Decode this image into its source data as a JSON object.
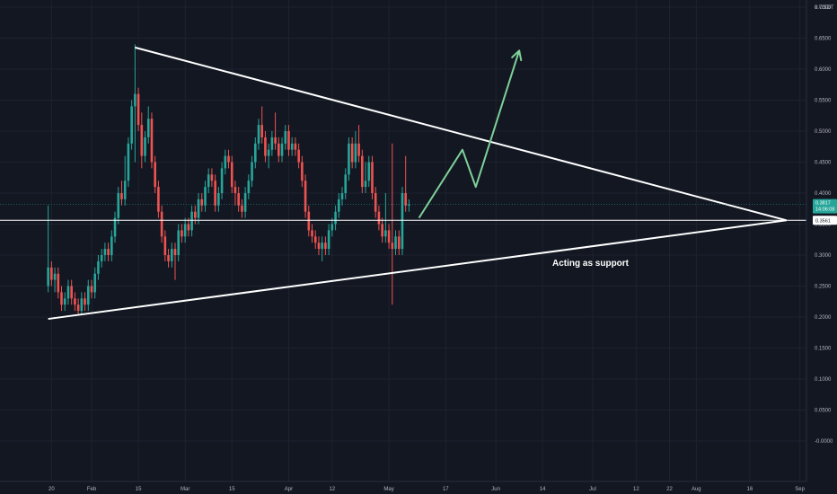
{
  "chart_data": {
    "type": "candlestick",
    "unit": "USDT",
    "y_ticks": [
      "0.7000",
      "0.6500",
      "0.6000",
      "0.5500",
      "0.5000",
      "0.4500",
      "0.4000",
      "0.3500",
      "0.3000",
      "0.2500",
      "0.2000",
      "0.1500",
      "0.1000",
      "0.0500",
      "-0.0000"
    ],
    "y_tick_values": [
      0.7,
      0.65,
      0.6,
      0.55,
      0.5,
      0.45,
      0.4,
      0.35,
      0.3,
      0.25,
      0.2,
      0.15,
      0.1,
      0.05,
      0.0
    ],
    "x_ticks": [
      "20",
      "Feb",
      "15",
      "Mar",
      "15",
      "Apr",
      "12",
      "May",
      "17",
      "Jun",
      "14",
      "Jul",
      "12",
      "22",
      "Aug",
      "16",
      "Sep"
    ],
    "x_tick_days": [
      -12,
      0,
      14,
      28,
      42,
      59,
      72,
      89,
      106,
      121,
      135,
      150,
      163,
      173,
      181,
      197,
      212
    ],
    "ylim": [
      -0.01,
      0.71
    ],
    "grid": true,
    "price_tag": {
      "value": "0.3817",
      "countdown": "14:06:08",
      "color": "#26a69a"
    },
    "support_tag": {
      "value": "0.3561"
    },
    "support_level": 0.3561,
    "annotation": "Acting as support",
    "colors": {
      "up": "#26a69a",
      "down": "#ef5350",
      "lines": "#ffffff",
      "projection": "#7fd19a"
    },
    "candles": [
      [
        -13,
        0.25,
        0.28,
        0.38,
        0.24
      ],
      [
        -12,
        0.28,
        0.26,
        0.29,
        0.25
      ],
      [
        -11,
        0.26,
        0.27,
        0.28,
        0.24
      ],
      [
        -10,
        0.27,
        0.24,
        0.28,
        0.23
      ],
      [
        -9,
        0.24,
        0.22,
        0.25,
        0.21
      ],
      [
        -8,
        0.22,
        0.23,
        0.24,
        0.21
      ],
      [
        -7,
        0.23,
        0.25,
        0.26,
        0.22
      ],
      [
        -6,
        0.25,
        0.23,
        0.26,
        0.22
      ],
      [
        -5,
        0.23,
        0.22,
        0.24,
        0.21
      ],
      [
        -4,
        0.22,
        0.21,
        0.23,
        0.205
      ],
      [
        -3,
        0.21,
        0.23,
        0.24,
        0.205
      ],
      [
        -2,
        0.23,
        0.22,
        0.24,
        0.21
      ],
      [
        -1,
        0.22,
        0.25,
        0.26,
        0.21
      ],
      [
        0,
        0.25,
        0.24,
        0.26,
        0.23
      ],
      [
        1,
        0.24,
        0.27,
        0.28,
        0.23
      ],
      [
        2,
        0.27,
        0.29,
        0.3,
        0.26
      ],
      [
        3,
        0.29,
        0.3,
        0.31,
        0.28
      ],
      [
        4,
        0.3,
        0.31,
        0.32,
        0.29
      ],
      [
        5,
        0.31,
        0.3,
        0.32,
        0.29
      ],
      [
        6,
        0.3,
        0.33,
        0.34,
        0.29
      ],
      [
        7,
        0.33,
        0.36,
        0.37,
        0.32
      ],
      [
        8,
        0.36,
        0.4,
        0.41,
        0.35
      ],
      [
        9,
        0.4,
        0.39,
        0.42,
        0.38
      ],
      [
        10,
        0.39,
        0.42,
        0.46,
        0.38
      ],
      [
        11,
        0.42,
        0.48,
        0.49,
        0.41
      ],
      [
        12,
        0.48,
        0.54,
        0.55,
        0.47
      ],
      [
        13,
        0.54,
        0.56,
        0.64,
        0.45
      ],
      [
        14,
        0.56,
        0.51,
        0.57,
        0.5
      ],
      [
        15,
        0.51,
        0.46,
        0.53,
        0.44
      ],
      [
        16,
        0.46,
        0.49,
        0.5,
        0.45
      ],
      [
        17,
        0.49,
        0.52,
        0.54,
        0.48
      ],
      [
        18,
        0.52,
        0.45,
        0.53,
        0.44
      ],
      [
        19,
        0.45,
        0.41,
        0.46,
        0.4
      ],
      [
        20,
        0.41,
        0.37,
        0.42,
        0.36
      ],
      [
        21,
        0.37,
        0.33,
        0.38,
        0.32
      ],
      [
        22,
        0.33,
        0.3,
        0.34,
        0.29
      ],
      [
        23,
        0.3,
        0.29,
        0.31,
        0.28
      ],
      [
        24,
        0.29,
        0.31,
        0.32,
        0.28
      ],
      [
        25,
        0.31,
        0.3,
        0.32,
        0.26
      ],
      [
        26,
        0.3,
        0.34,
        0.35,
        0.29
      ],
      [
        27,
        0.34,
        0.33,
        0.35,
        0.32
      ],
      [
        28,
        0.33,
        0.35,
        0.36,
        0.32
      ],
      [
        29,
        0.35,
        0.34,
        0.36,
        0.33
      ],
      [
        30,
        0.34,
        0.37,
        0.38,
        0.33
      ],
      [
        31,
        0.37,
        0.36,
        0.38,
        0.35
      ],
      [
        32,
        0.36,
        0.39,
        0.4,
        0.35
      ],
      [
        33,
        0.39,
        0.38,
        0.4,
        0.37
      ],
      [
        34,
        0.38,
        0.41,
        0.42,
        0.37
      ],
      [
        35,
        0.41,
        0.43,
        0.44,
        0.4
      ],
      [
        36,
        0.43,
        0.42,
        0.44,
        0.41
      ],
      [
        37,
        0.42,
        0.38,
        0.43,
        0.37
      ],
      [
        38,
        0.38,
        0.4,
        0.41,
        0.37
      ],
      [
        39,
        0.4,
        0.44,
        0.45,
        0.39
      ],
      [
        40,
        0.44,
        0.46,
        0.47,
        0.43
      ],
      [
        41,
        0.46,
        0.45,
        0.47,
        0.44
      ],
      [
        42,
        0.45,
        0.41,
        0.46,
        0.4
      ],
      [
        43,
        0.41,
        0.4,
        0.42,
        0.38
      ],
      [
        44,
        0.4,
        0.38,
        0.41,
        0.37
      ],
      [
        45,
        0.38,
        0.37,
        0.39,
        0.36
      ],
      [
        46,
        0.37,
        0.4,
        0.41,
        0.36
      ],
      [
        47,
        0.4,
        0.42,
        0.43,
        0.39
      ],
      [
        48,
        0.42,
        0.45,
        0.46,
        0.41
      ],
      [
        49,
        0.45,
        0.48,
        0.49,
        0.44
      ],
      [
        50,
        0.48,
        0.51,
        0.52,
        0.47
      ],
      [
        51,
        0.51,
        0.49,
        0.54,
        0.48
      ],
      [
        52,
        0.49,
        0.46,
        0.5,
        0.45
      ],
      [
        53,
        0.46,
        0.47,
        0.48,
        0.44
      ],
      [
        54,
        0.47,
        0.49,
        0.5,
        0.46
      ],
      [
        55,
        0.49,
        0.48,
        0.53,
        0.47
      ],
      [
        56,
        0.48,
        0.46,
        0.49,
        0.45
      ],
      [
        57,
        0.46,
        0.48,
        0.49,
        0.45
      ],
      [
        58,
        0.48,
        0.5,
        0.51,
        0.47
      ],
      [
        59,
        0.5,
        0.47,
        0.51,
        0.46
      ],
      [
        60,
        0.47,
        0.48,
        0.49,
        0.46
      ],
      [
        61,
        0.48,
        0.47,
        0.49,
        0.46
      ],
      [
        62,
        0.47,
        0.45,
        0.48,
        0.44
      ],
      [
        63,
        0.45,
        0.42,
        0.46,
        0.41
      ],
      [
        64,
        0.42,
        0.37,
        0.43,
        0.36
      ],
      [
        65,
        0.37,
        0.34,
        0.38,
        0.33
      ],
      [
        66,
        0.34,
        0.33,
        0.35,
        0.32
      ],
      [
        67,
        0.33,
        0.32,
        0.34,
        0.31
      ],
      [
        68,
        0.32,
        0.31,
        0.33,
        0.3
      ],
      [
        69,
        0.31,
        0.32,
        0.33,
        0.29
      ],
      [
        70,
        0.32,
        0.31,
        0.33,
        0.3
      ],
      [
        71,
        0.31,
        0.34,
        0.35,
        0.3
      ],
      [
        72,
        0.34,
        0.35,
        0.36,
        0.33
      ],
      [
        73,
        0.35,
        0.37,
        0.38,
        0.34
      ],
      [
        74,
        0.37,
        0.39,
        0.4,
        0.36
      ],
      [
        75,
        0.39,
        0.4,
        0.41,
        0.38
      ],
      [
        76,
        0.4,
        0.43,
        0.44,
        0.39
      ],
      [
        77,
        0.43,
        0.48,
        0.49,
        0.42
      ],
      [
        78,
        0.48,
        0.45,
        0.49,
        0.44
      ],
      [
        79,
        0.45,
        0.48,
        0.5,
        0.44
      ],
      [
        80,
        0.48,
        0.46,
        0.51,
        0.45
      ],
      [
        81,
        0.46,
        0.41,
        0.47,
        0.4
      ],
      [
        82,
        0.41,
        0.42,
        0.45,
        0.4
      ],
      [
        83,
        0.42,
        0.45,
        0.46,
        0.41
      ],
      [
        84,
        0.45,
        0.4,
        0.46,
        0.39
      ],
      [
        85,
        0.4,
        0.37,
        0.41,
        0.36
      ],
      [
        86,
        0.37,
        0.35,
        0.38,
        0.34
      ],
      [
        87,
        0.35,
        0.33,
        0.36,
        0.32
      ],
      [
        88,
        0.33,
        0.34,
        0.4,
        0.32
      ],
      [
        89,
        0.34,
        0.32,
        0.35,
        0.31
      ],
      [
        90,
        0.32,
        0.31,
        0.48,
        0.22
      ],
      [
        91,
        0.31,
        0.33,
        0.34,
        0.3
      ],
      [
        92,
        0.33,
        0.31,
        0.34,
        0.3
      ],
      [
        93,
        0.31,
        0.4,
        0.41,
        0.3
      ],
      [
        94,
        0.4,
        0.38,
        0.46,
        0.37
      ],
      [
        95,
        0.38,
        0.3817,
        0.39,
        0.37
      ]
    ],
    "resistance_line": [
      [
        13,
        0.635
      ],
      [
        208,
        0.3561
      ]
    ],
    "support_line": [
      [
        -13,
        0.197
      ],
      [
        208,
        0.3561
      ]
    ],
    "horizontal_line": {
      "from": -13,
      "to": 208,
      "value": 0.3561
    },
    "projection_path": [
      [
        98,
        0.36
      ],
      [
        111,
        0.47
      ],
      [
        115,
        0.41
      ],
      [
        128,
        0.63
      ]
    ]
  }
}
